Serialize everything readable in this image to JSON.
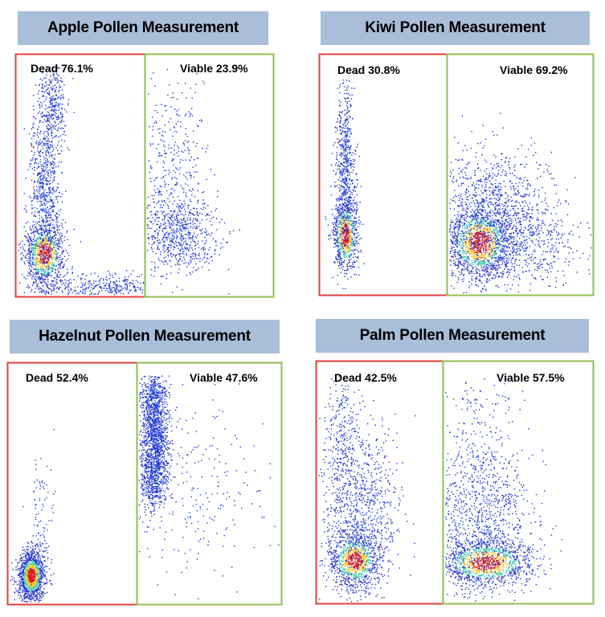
{
  "chart_data": [
    {
      "type": "scatter",
      "title": "Apple Pollen Measurement",
      "gates": [
        {
          "name": "Dead",
          "percent": "76.1%",
          "color": "#e0403a"
        },
        {
          "name": "Viable",
          "percent": "23.9%",
          "color": "#8cc152"
        }
      ],
      "populations": [
        {
          "gate": "Dead",
          "x": 0.78,
          "y": 0.18,
          "sx": 0.08,
          "sy": 0.07,
          "n": 900,
          "hot": true
        },
        {
          "gate": "Dead",
          "x": 0.78,
          "y": 0.45,
          "sx": 0.06,
          "sy": 0.22,
          "n": 900,
          "hot": false
        },
        {
          "gate": "Dead",
          "x": 0.7,
          "y": 0.8,
          "sx": 0.05,
          "sy": 0.1,
          "n": 250,
          "hot": false
        },
        {
          "gate": "Dead",
          "x": 0.3,
          "y": 0.04,
          "sx": 0.3,
          "sy": 0.03,
          "n": 450,
          "hot": false
        },
        {
          "gate": "Viable",
          "x": 0.25,
          "y": 0.25,
          "sx": 0.15,
          "sy": 0.07,
          "n": 600,
          "hot": false
        },
        {
          "gate": "Viable",
          "x": 0.2,
          "y": 0.5,
          "sx": 0.15,
          "sy": 0.2,
          "n": 450,
          "hot": false
        }
      ]
    },
    {
      "type": "scatter",
      "title": "Kiwi Pollen Measurement",
      "gates": [
        {
          "name": "Dead",
          "percent": "30.8%",
          "color": "#e0403a"
        },
        {
          "name": "Viable",
          "percent": "69.2%",
          "color": "#8cc152"
        }
      ],
      "populations": [
        {
          "gate": "Dead",
          "x": 0.8,
          "y": 0.25,
          "sx": 0.05,
          "sy": 0.08,
          "n": 800,
          "hot": true
        },
        {
          "gate": "Dead",
          "x": 0.8,
          "y": 0.55,
          "sx": 0.04,
          "sy": 0.18,
          "n": 600,
          "hot": false
        },
        {
          "gate": "Viable",
          "x": 0.22,
          "y": 0.22,
          "sx": 0.12,
          "sy": 0.08,
          "n": 1500,
          "hot": true
        },
        {
          "gate": "Viable",
          "x": 0.3,
          "y": 0.35,
          "sx": 0.2,
          "sy": 0.14,
          "n": 1000,
          "hot": false
        },
        {
          "gate": "Viable",
          "x": 0.55,
          "y": 0.2,
          "sx": 0.2,
          "sy": 0.08,
          "n": 400,
          "hot": false
        }
      ]
    },
    {
      "type": "scatter",
      "title": "Hazelnut Pollen Measurement",
      "gates": [
        {
          "name": "Dead",
          "percent": "52.4%",
          "color": "#e0403a"
        },
        {
          "name": "Viable",
          "percent": "47.6%",
          "color": "#8cc152"
        }
      ],
      "populations": [
        {
          "gate": "Dead",
          "x": 0.82,
          "y": 0.12,
          "sx": 0.05,
          "sy": 0.05,
          "n": 1300,
          "hot": true
        },
        {
          "gate": "Dead",
          "x": 0.75,
          "y": 0.3,
          "sx": 0.05,
          "sy": 0.15,
          "n": 120,
          "hot": false
        },
        {
          "gate": "Viable",
          "x": 0.11,
          "y": 0.55,
          "sx": 0.05,
          "sy": 0.08,
          "n": 700,
          "hot": false
        },
        {
          "gate": "Viable",
          "x": 0.11,
          "y": 0.83,
          "sx": 0.05,
          "sy": 0.09,
          "n": 700,
          "hot": false
        },
        {
          "gate": "Viable",
          "x": 0.13,
          "y": 0.7,
          "sx": 0.05,
          "sy": 0.08,
          "n": 400,
          "hot": false
        },
        {
          "gate": "Viable",
          "x": 0.4,
          "y": 0.5,
          "sx": 0.25,
          "sy": 0.2,
          "n": 250,
          "hot": false
        }
      ]
    },
    {
      "type": "scatter",
      "title": "Palm Pollen Measurement",
      "gates": [
        {
          "name": "Dead",
          "percent": "42.5%",
          "color": "#e0403a"
        },
        {
          "name": "Viable",
          "percent": "57.5%",
          "color": "#8cc152"
        }
      ],
      "populations": [
        {
          "gate": "Dead",
          "x": 0.7,
          "y": 0.18,
          "sx": 0.1,
          "sy": 0.06,
          "n": 1000,
          "hot": true
        },
        {
          "gate": "Dead",
          "x": 0.65,
          "y": 0.4,
          "sx": 0.15,
          "sy": 0.16,
          "n": 800,
          "hot": false
        },
        {
          "gate": "Dead",
          "x": 0.8,
          "y": 0.7,
          "sx": 0.08,
          "sy": 0.16,
          "n": 300,
          "hot": false
        },
        {
          "gate": "Viable",
          "x": 0.28,
          "y": 0.17,
          "sx": 0.16,
          "sy": 0.05,
          "n": 1200,
          "hot": true
        },
        {
          "gate": "Viable",
          "x": 0.25,
          "y": 0.35,
          "sx": 0.18,
          "sy": 0.15,
          "n": 900,
          "hot": false
        },
        {
          "gate": "Viable",
          "x": 0.2,
          "y": 0.7,
          "sx": 0.15,
          "sy": 0.18,
          "n": 250,
          "hot": false
        }
      ]
    }
  ]
}
